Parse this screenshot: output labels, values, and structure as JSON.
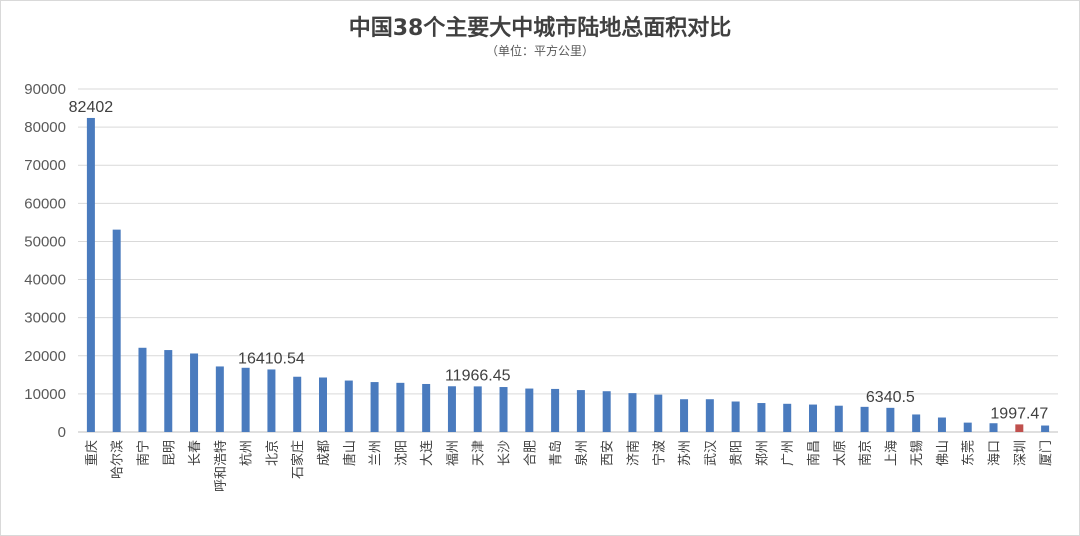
{
  "chart_data": {
    "type": "bar",
    "title": "中国38个主要大中城市陆地总面积对比",
    "subtitle": "（单位：平方公里）",
    "xlabel": "",
    "ylabel": "",
    "ylim": [
      0,
      90000
    ],
    "yticks": [
      0,
      10000,
      20000,
      30000,
      40000,
      50000,
      60000,
      70000,
      80000,
      90000
    ],
    "grid": true,
    "colors": {
      "bar": "#4a7bbe",
      "highlight": "#c0504d",
      "grid": "#d9d9d9"
    },
    "highlight_category": "深圳",
    "categories": [
      "重庆",
      "哈尔滨",
      "南宁",
      "昆明",
      "长春",
      "呼和浩特",
      "杭州",
      "北京",
      "石家庄",
      "成都",
      "唐山",
      "兰州",
      "沈阳",
      "大连",
      "福州",
      "天津",
      "长沙",
      "合肥",
      "青岛",
      "泉州",
      "西安",
      "济南",
      "宁波",
      "苏州",
      "武汉",
      "贵阳",
      "郑州",
      "广州",
      "南昌",
      "太原",
      "南京",
      "上海",
      "无锡",
      "佛山",
      "东莞",
      "海口",
      "深圳",
      "厦门"
    ],
    "values": [
      82402,
      53100,
      22100,
      21500,
      20600,
      17200,
      16850,
      16410.54,
      14500,
      14300,
      13500,
      13100,
      12900,
      12600,
      12000,
      11966.45,
      11800,
      11400,
      11300,
      11000,
      10700,
      10200,
      9800,
      8600,
      8600,
      8000,
      7600,
      7400,
      7200,
      6900,
      6600,
      6340.5,
      4600,
      3800,
      2460,
      2300,
      1997.47,
      1700
    ],
    "data_labels": [
      {
        "category": "重庆",
        "text": "82402"
      },
      {
        "category": "北京",
        "text": "16410.54"
      },
      {
        "category": "天津",
        "text": "11966.45"
      },
      {
        "category": "上海",
        "text": "6340.5"
      },
      {
        "category": "深圳",
        "text": "1997.47"
      }
    ]
  }
}
